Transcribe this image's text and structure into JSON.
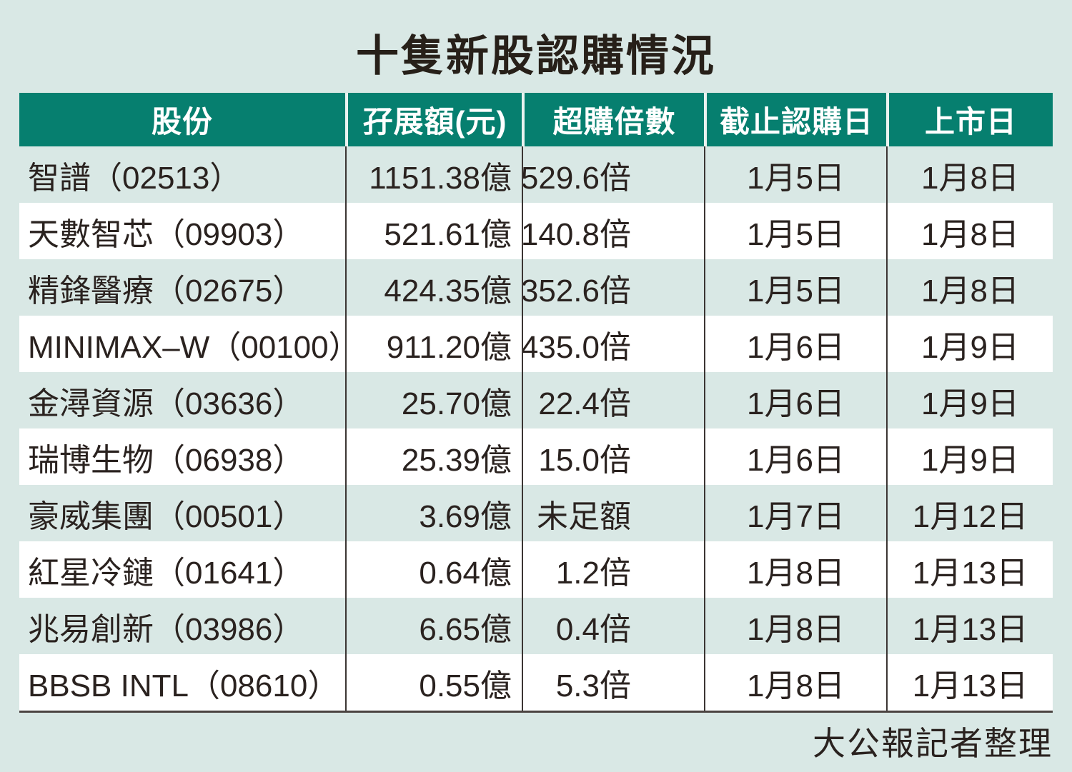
{
  "page": {
    "title": "十隻新股認購情況",
    "source_note": "大公報記者整理"
  },
  "colors": {
    "page_bg": "#d9e8e5",
    "header_bg": "#067f6f",
    "header_text": "#ffffff",
    "row_teal_bg": "#d9e8e5",
    "row_white_bg": "#ffffff",
    "body_text": "#2a221f",
    "grid_line": "#3b3533"
  },
  "chart_data": {
    "type": "table",
    "title": "十隻新股認購情況",
    "columns": [
      "股份",
      "孖展額(元)",
      "超購倍數",
      "截止認購日",
      "上市日"
    ],
    "rows": [
      [
        "智譜（02513）",
        "1151.38億",
        "529.6倍",
        "1月5日",
        "1月8日"
      ],
      [
        "天數智芯（09903）",
        "521.61億",
        "140.8倍",
        "1月5日",
        "1月8日"
      ],
      [
        "精鋒醫療（02675）",
        "424.35億",
        "352.6倍",
        "1月5日",
        "1月8日"
      ],
      [
        "MINIMAX–W（00100）",
        "911.20億",
        "435.0倍",
        "1月6日",
        "1月9日"
      ],
      [
        "金潯資源（03636）",
        "25.70億",
        "22.4倍",
        "1月6日",
        "1月9日"
      ],
      [
        "瑞博生物（06938）",
        "25.39億",
        "15.0倍",
        "1月6日",
        "1月9日"
      ],
      [
        "豪威集團（00501）",
        "3.69億",
        "未足額",
        "1月7日",
        "1月12日"
      ],
      [
        "紅星冷鏈（01641）",
        "0.64億",
        "1.2倍",
        "1月8日",
        "1月13日"
      ],
      [
        "兆易創新（03986）",
        "6.65億",
        "0.4倍",
        "1月8日",
        "1月13日"
      ],
      [
        "BBSB INTL（08610）",
        "0.55億",
        "5.3倍",
        "1月8日",
        "1月13日"
      ]
    ],
    "footnote": "大公報記者整理",
    "layout": {
      "column_alignments": [
        "left",
        "right",
        "right",
        "center",
        "center"
      ],
      "first_row_shaded": true
    }
  }
}
